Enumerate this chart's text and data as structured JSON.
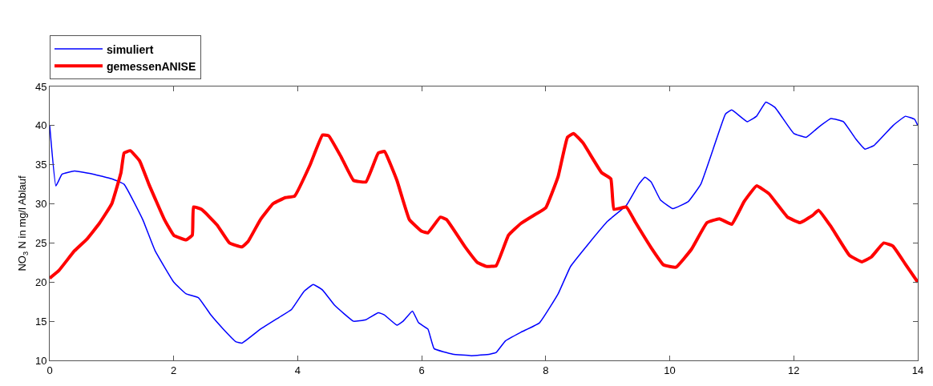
{
  "chart_data": {
    "type": "line",
    "ylabel": "NO$_{3}$ N in mg/l Ablauf",
    "xlim": [
      0,
      14
    ],
    "xticks": [
      0,
      2,
      4,
      6,
      8,
      10,
      12,
      14
    ],
    "ylim": [
      10,
      45
    ],
    "yticks": [
      10,
      15,
      20,
      25,
      30,
      35,
      40,
      45
    ],
    "legend": "top",
    "marker": "none",
    "series": [
      {
        "name": "simuliert",
        "color": "#0000ff",
        "x": [
          0,
          0.1,
          0.2,
          0.4,
          0.7,
          1.0,
          1.2,
          1.5,
          1.7,
          2.0,
          2.2,
          2.4,
          2.6,
          2.8,
          3.0,
          3.1,
          3.4,
          3.7,
          3.9,
          4.1,
          4.25,
          4.4,
          4.6,
          4.9,
          5.1,
          5.3,
          5.4,
          5.6,
          5.7,
          5.85,
          5.95,
          6.1,
          6.2,
          6.5,
          6.8,
          7.1,
          7.2,
          7.35,
          7.6,
          7.9,
          8.2,
          8.4,
          8.7,
          9.0,
          9.3,
          9.5,
          9.6,
          9.7,
          9.85,
          10.05,
          10.3,
          10.5,
          10.7,
          10.9,
          11.0,
          11.25,
          11.4,
          11.55,
          11.7,
          12.0,
          12.2,
          12.4,
          12.6,
          12.8,
          13.0,
          13.15,
          13.3,
          13.6,
          13.8,
          13.95,
          14
        ],
        "values": [
          40,
          32.3,
          33.8,
          34.2,
          33.8,
          33.2,
          32.5,
          28,
          24,
          20,
          18.5,
          18,
          15.8,
          14,
          12.4,
          12.2,
          14,
          15.5,
          16.5,
          18.8,
          19.7,
          19,
          17,
          15,
          15.2,
          16.1,
          15.8,
          14.5,
          15,
          16.3,
          14.8,
          14,
          11.5,
          10.8,
          10.6,
          10.8,
          11,
          12.5,
          13.6,
          14.8,
          18.5,
          22,
          25,
          27.8,
          29.8,
          32.5,
          33.4,
          32.8,
          30.5,
          29.4,
          30.3,
          32.5,
          37,
          41.5,
          42,
          40.5,
          41.2,
          43,
          42.3,
          39,
          38.5,
          39.8,
          40.9,
          40.5,
          38.3,
          37,
          37.5,
          40,
          41.2,
          40.8,
          40
        ]
      },
      {
        "name": "gemessenANISE",
        "color": "#ff0000",
        "x": [
          0,
          0.15,
          0.4,
          0.6,
          0.8,
          1.0,
          1.15,
          1.2,
          1.3,
          1.45,
          1.6,
          1.85,
          2.0,
          2.2,
          2.3,
          2.32,
          2.45,
          2.7,
          2.9,
          3.1,
          3.2,
          3.4,
          3.6,
          3.8,
          3.95,
          4.2,
          4.4,
          4.5,
          4.7,
          4.9,
          5.1,
          5.3,
          5.4,
          5.6,
          5.8,
          6.0,
          6.1,
          6.3,
          6.4,
          6.7,
          6.9,
          7.05,
          7.2,
          7.4,
          7.6,
          7.8,
          8.0,
          8.2,
          8.35,
          8.45,
          8.6,
          8.9,
          9.05,
          9.1,
          9.3,
          9.45,
          9.7,
          9.9,
          10.1,
          10.35,
          10.6,
          10.8,
          11.0,
          11.2,
          11.4,
          11.6,
          11.9,
          12.1,
          12.3,
          12.4,
          12.6,
          12.9,
          13.1,
          13.25,
          13.45,
          13.6,
          13.8,
          14
        ],
        "values": [
          20.5,
          21.5,
          24,
          25.5,
          27.5,
          30,
          34,
          36.5,
          36.8,
          35.5,
          32.5,
          28,
          26,
          25.4,
          26,
          29.6,
          29.3,
          27.3,
          25,
          24.5,
          25.2,
          28,
          30,
          30.8,
          31,
          35,
          38.8,
          38.7,
          36,
          33,
          32.8,
          36.5,
          36.7,
          33,
          28,
          26.5,
          26.3,
          28.3,
          28,
          24.5,
          22.5,
          22,
          22.1,
          26,
          27.5,
          28.5,
          29.5,
          33.5,
          38.5,
          39,
          37.8,
          34,
          33.2,
          29.3,
          29.6,
          27.6,
          24.4,
          22.2,
          21.9,
          24.2,
          27.6,
          28.1,
          27.4,
          30.3,
          32.3,
          31.3,
          28.3,
          27.6,
          28.5,
          29.2,
          27.1,
          23.4,
          22.6,
          23.2,
          25,
          24.6,
          22.3,
          20
        ]
      }
    ]
  }
}
